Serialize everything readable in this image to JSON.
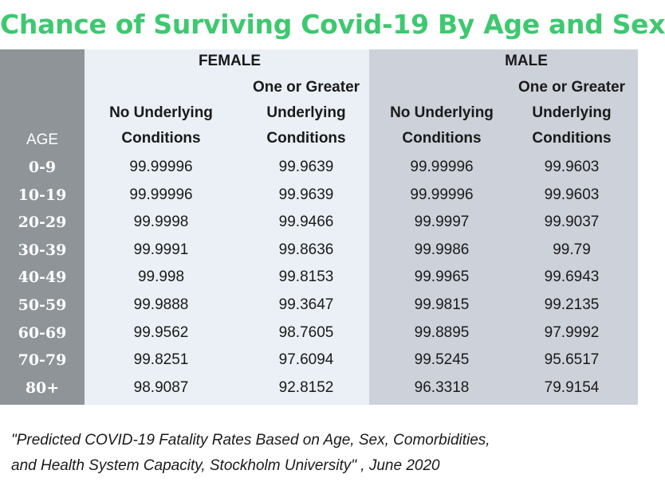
{
  "title": "Chance of Surviving Covid-19 By Age and Sex",
  "headers": {
    "age": "AGE",
    "female": "FEMALE",
    "male": "MALE",
    "no_conditions_line1": "No Underlying",
    "no_conditions_line2": "Conditions",
    "greater_line1": "One or Greater",
    "greater_line2": "Underlying",
    "greater_line3": "Conditions"
  },
  "rows": [
    {
      "age": "0-9",
      "female_none": "99.99996",
      "female_one": "99.9639",
      "male_none": "99.99996",
      "male_one": "99.9603"
    },
    {
      "age": "10-19",
      "female_none": "99.99996",
      "female_one": "99.9639",
      "male_none": "99.99996",
      "male_one": "99.9603"
    },
    {
      "age": "20-29",
      "female_none": "99.9998",
      "female_one": "99.9466",
      "male_none": "99.9997",
      "male_one": "99.9037"
    },
    {
      "age": "30-39",
      "female_none": "99.9991",
      "female_one": "99.8636",
      "male_none": "99.9986",
      "male_one": "99.79"
    },
    {
      "age": "40-49",
      "female_none": "99.998",
      "female_one": "99.8153",
      "male_none": "99.9965",
      "male_one": "99.6943"
    },
    {
      "age": "50-59",
      "female_none": "99.9888",
      "female_one": "99.3647",
      "male_none": "99.9815",
      "male_one": "99.2135"
    },
    {
      "age": "60-69",
      "female_none": "99.9562",
      "female_one": "98.7605",
      "male_none": "99.8895",
      "male_one": "97.9992"
    },
    {
      "age": "70-79",
      "female_none": "99.8251",
      "female_one": "97.6094",
      "male_none": "99.5245",
      "male_one": "95.6517"
    },
    {
      "age": "80+",
      "female_none": "98.9087",
      "female_one": "92.8152",
      "male_none": "96.3318",
      "male_one": "79.9154"
    }
  ],
  "footer": {
    "line1": "\"Predicted COVID-19 Fatality Rates Based on Age, Sex, Comorbidities,",
    "line2": "and Health System Capacity,  Stockholm University\" , June 2020"
  },
  "colors": {
    "title": "#3ec870",
    "age_column": "#8e9498",
    "female_panel": "#eaf0f5",
    "male_panel": "#cdd1da"
  }
}
